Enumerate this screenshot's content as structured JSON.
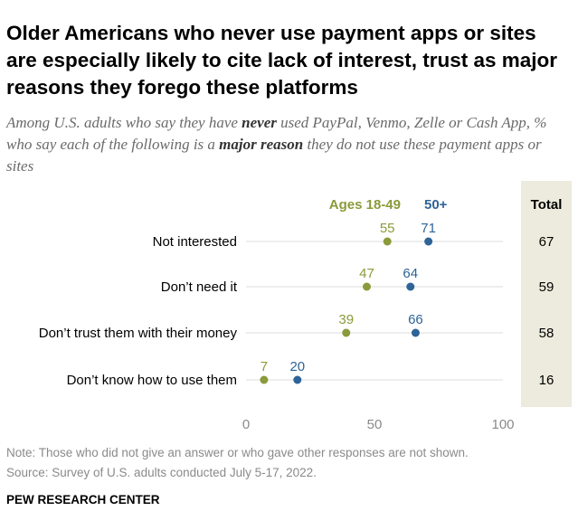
{
  "title": "Older Americans who never use payment apps or sites are especially likely to cite lack of interest, trust as major reasons they forego these platforms",
  "subtitle": {
    "part1": "Among U.S. adults who say they have ",
    "emph1": "never",
    "part2": " used PayPal, Venmo, Zelle or Cash App, % who say each of the following is a ",
    "emph2": "major reason",
    "part3": " they do not use these payment apps or sites"
  },
  "note": "Note: Those who did not give an answer or who gave other responses are not shown.",
  "source": "Source: Survey of U.S. adults conducted July 5-17, 2022.",
  "brand": "PEW RESEARCH CENTER",
  "colors": {
    "young": "#8b9a3a",
    "old": "#2e6497",
    "total_bg": "#ecebdd",
    "grid": "#dcdcdc"
  },
  "chart_data": {
    "type": "dot",
    "categories": [
      "Not interested",
      "Don’t need it",
      "Don’t trust them with their money",
      "Don’t know how to use them"
    ],
    "series": [
      {
        "name": "Ages 18-49",
        "values": [
          55,
          47,
          39,
          7
        ]
      },
      {
        "name": "50+",
        "values": [
          71,
          64,
          66,
          20
        ]
      }
    ],
    "total": {
      "label": "Total",
      "values": [
        67,
        59,
        58,
        16
      ]
    },
    "xlim": [
      0,
      100
    ],
    "xticks": [
      0,
      50,
      100
    ],
    "xlabel": "",
    "ylabel": ""
  }
}
